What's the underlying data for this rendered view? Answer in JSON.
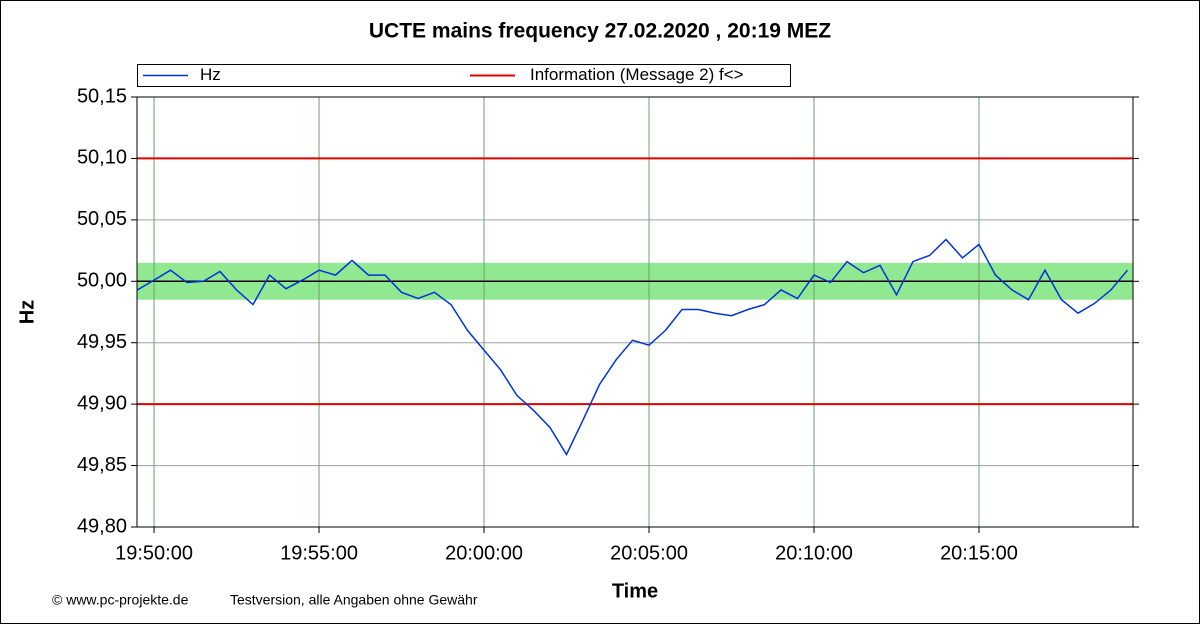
{
  "chart_data": {
    "type": "line",
    "title": "UCTE mains frequency  27.02.2020 , 20:19 MEZ",
    "x_label": "Time",
    "y_label": "Hz",
    "footer_left": "© www.pc-projekte.de",
    "footer_right": "Testversion, alle Angaben ohne Gewähr",
    "x": [
      "19:49:30",
      "19:50:00",
      "19:50:30",
      "19:51:00",
      "19:51:30",
      "19:52:00",
      "19:52:30",
      "19:53:00",
      "19:53:30",
      "19:54:00",
      "19:54:30",
      "19:55:00",
      "19:55:30",
      "19:56:00",
      "19:56:30",
      "19:57:00",
      "19:57:30",
      "19:58:00",
      "19:58:30",
      "19:59:00",
      "19:59:30",
      "20:00:00",
      "20:00:30",
      "20:01:00",
      "20:01:30",
      "20:02:00",
      "20:02:30",
      "20:03:00",
      "20:03:30",
      "20:04:00",
      "20:04:30",
      "20:05:00",
      "20:05:30",
      "20:06:00",
      "20:06:30",
      "20:07:00",
      "20:07:30",
      "20:08:00",
      "20:08:30",
      "20:09:00",
      "20:09:30",
      "20:10:00",
      "20:10:30",
      "20:11:00",
      "20:11:30",
      "20:12:00",
      "20:12:30",
      "20:13:00",
      "20:13:30",
      "20:14:00",
      "20:14:30",
      "20:15:00",
      "20:15:30",
      "20:16:00",
      "20:16:30",
      "20:17:00",
      "20:17:30",
      "20:18:00",
      "20:18:30",
      "20:19:00",
      "20:19:30"
    ],
    "series": [
      {
        "name": "Hz",
        "color": "#0033dd",
        "values": [
          49.993,
          50.001,
          50.009,
          49.999,
          50.0,
          50.008,
          49.993,
          49.981,
          50.005,
          49.994,
          50.001,
          50.009,
          50.005,
          50.017,
          50.005,
          50.005,
          49.991,
          49.986,
          49.991,
          49.981,
          49.96,
          49.944,
          49.928,
          49.907,
          49.895,
          49.881,
          49.859,
          49.887,
          49.916,
          49.936,
          49.952,
          49.948,
          49.96,
          49.977,
          49.977,
          49.974,
          49.972,
          49.977,
          49.981,
          49.993,
          49.986,
          50.005,
          49.999,
          50.016,
          50.007,
          50.013,
          49.989,
          50.016,
          50.021,
          50.034,
          50.019,
          50.03,
          50.005,
          49.993,
          49.985,
          50.009,
          49.985,
          49.974,
          49.982,
          49.993,
          50.009
        ]
      }
    ],
    "reference_lines": {
      "name": "Information (Message 2) f<>",
      "color": "#e00000",
      "values": [
        50.1,
        49.9
      ]
    },
    "band": {
      "color": "#90e890",
      "range": [
        49.985,
        50.015
      ]
    },
    "center_line": 50,
    "xlim": [
      "19:49:29",
      "20:19:40"
    ],
    "xticks": [
      "19:50:00",
      "19:55:00",
      "20:00:00",
      "20:05:00",
      "20:10:00",
      "20:15:00"
    ],
    "ylim": [
      49.8,
      50.15
    ],
    "yticks": [
      {
        "value": 49.8,
        "label": "49,80"
      },
      {
        "value": 49.85,
        "label": "49,85"
      },
      {
        "value": 49.9,
        "label": "49,90"
      },
      {
        "value": 49.95,
        "label": "49,95"
      },
      {
        "value": 50.0,
        "label": "50,00"
      },
      {
        "value": 50.05,
        "label": "50,05"
      },
      {
        "value": 50.1,
        "label": "50,10"
      },
      {
        "value": 50.15,
        "label": "50,15"
      }
    ],
    "grid": true
  }
}
